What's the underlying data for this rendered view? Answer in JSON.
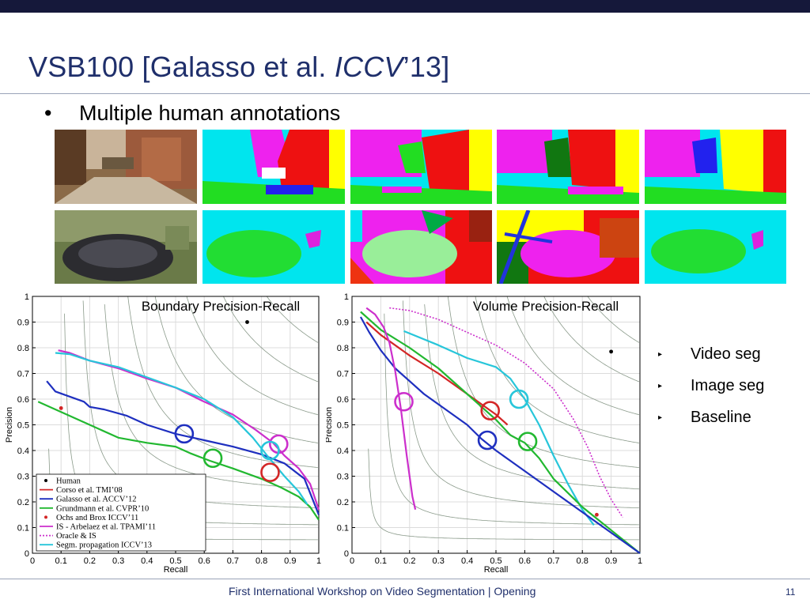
{
  "slide": {
    "title_main": "VSB100   [Galasso et al. ",
    "title_ital": "ICCV",
    "title_end": "’13]",
    "bullet_marker": "•",
    "bullet": "Multiple human annotations",
    "legend": [
      {
        "marker": "▸",
        "label": "Video seg"
      },
      {
        "marker": "▸",
        "label": "Image seg"
      },
      {
        "marker": "▸",
        "label": "Baseline"
      }
    ],
    "footer": "First International Workshop on Video Segmentation |  Opening",
    "page_number": "11"
  },
  "images": [
    {
      "name": "temple-photo",
      "kind": "photo"
    },
    {
      "name": "temple-annotation-1",
      "kind": "segmentation"
    },
    {
      "name": "temple-annotation-2",
      "kind": "segmentation"
    },
    {
      "name": "temple-annotation-3",
      "kind": "segmentation"
    },
    {
      "name": "temple-annotation-4",
      "kind": "segmentation"
    },
    {
      "name": "mushroom-photo",
      "kind": "photo"
    },
    {
      "name": "mushroom-annotation-1",
      "kind": "segmentation"
    },
    {
      "name": "mushroom-annotation-2",
      "kind": "segmentation"
    },
    {
      "name": "mushroom-annotation-3",
      "kind": "segmentation"
    },
    {
      "name": "mushroom-annotation-4",
      "kind": "segmentation"
    }
  ],
  "chart_data": [
    {
      "type": "line",
      "title": "Boundary Precision-Recall",
      "xlabel": "Recall",
      "ylabel": "Precision",
      "xlim": [
        0,
        1
      ],
      "ylim": [
        0,
        1
      ],
      "ticks": [
        "0",
        "0.1",
        "0.2",
        "0.3",
        "0.4",
        "0.5",
        "0.6",
        "0.7",
        "0.8",
        "0.9",
        "1"
      ],
      "grid": true,
      "iso_f_curves": true,
      "legend_position": "bottom-left",
      "legend_entries": [
        {
          "label": "Human",
          "color": "#000000",
          "style": "dot"
        },
        {
          "label": "Corso et al. TMI’08",
          "color": "#d32626",
          "style": "line"
        },
        {
          "label": "Galasso et al. ACCV’12",
          "color": "#1e2fbf",
          "style": "line"
        },
        {
          "label": "Grundmann et al. CVPR’10",
          "color": "#22b830",
          "style": "line"
        },
        {
          "label": "Ochs and Brox ICCV’11",
          "color": "#d32626",
          "style": "dot"
        },
        {
          "label": "IS - Arbelaez et al. TPAMI’11",
          "color": "#cc2fcc",
          "style": "line"
        },
        {
          "label": "Oracle & IS",
          "color": "#cc2fcc",
          "style": "dashed"
        },
        {
          "label": "Segm. propagation ICCV’13",
          "color": "#27c6da",
          "style": "line"
        }
      ],
      "series": [
        {
          "color": "#1e2fbf",
          "points": [
            [
              0.05,
              0.67
            ],
            [
              0.08,
              0.63
            ],
            [
              0.13,
              0.61
            ],
            [
              0.18,
              0.59
            ],
            [
              0.2,
              0.57
            ],
            [
              0.25,
              0.56
            ],
            [
              0.33,
              0.535
            ],
            [
              0.4,
              0.5
            ],
            [
              0.5,
              0.465
            ],
            [
              0.6,
              0.44
            ],
            [
              0.7,
              0.415
            ],
            [
              0.8,
              0.385
            ],
            [
              0.88,
              0.35
            ],
            [
              0.95,
              0.29
            ],
            [
              1.0,
              0.15
            ]
          ]
        },
        {
          "color": "#22b830",
          "points": [
            [
              0.02,
              0.59
            ],
            [
              0.1,
              0.55
            ],
            [
              0.2,
              0.5
            ],
            [
              0.3,
              0.45
            ],
            [
              0.4,
              0.43
            ],
            [
              0.5,
              0.415
            ],
            [
              0.55,
              0.39
            ],
            [
              0.62,
              0.36
            ],
            [
              0.7,
              0.33
            ],
            [
              0.8,
              0.29
            ],
            [
              0.87,
              0.255
            ],
            [
              0.93,
              0.22
            ],
            [
              0.97,
              0.18
            ],
            [
              1.0,
              0.13
            ]
          ]
        },
        {
          "color": "#cc2fcc",
          "points": [
            [
              0.09,
              0.79
            ],
            [
              0.13,
              0.78
            ],
            [
              0.2,
              0.75
            ],
            [
              0.3,
              0.72
            ],
            [
              0.4,
              0.68
            ],
            [
              0.5,
              0.645
            ],
            [
              0.6,
              0.59
            ],
            [
              0.7,
              0.54
            ],
            [
              0.78,
              0.48
            ],
            [
              0.84,
              0.43
            ],
            [
              0.88,
              0.38
            ],
            [
              0.93,
              0.33
            ],
            [
              0.97,
              0.27
            ],
            [
              1.0,
              0.17
            ]
          ]
        },
        {
          "color": "#27c6da",
          "points": [
            [
              0.08,
              0.78
            ],
            [
              0.13,
              0.775
            ],
            [
              0.2,
              0.75
            ],
            [
              0.3,
              0.725
            ],
            [
              0.4,
              0.685
            ],
            [
              0.5,
              0.645
            ],
            [
              0.6,
              0.6
            ],
            [
              0.7,
              0.53
            ],
            [
              0.77,
              0.45
            ],
            [
              0.82,
              0.38
            ],
            [
              0.88,
              0.3
            ],
            [
              0.93,
              0.24
            ],
            [
              0.96,
              0.19
            ]
          ]
        }
      ],
      "points": [
        {
          "color": "#000000",
          "x": 0.75,
          "y": 0.9
        },
        {
          "color": "#d32626",
          "x": 0.1,
          "y": 0.565
        }
      ],
      "circles": [
        {
          "color": "#1e2fbf",
          "x": 0.53,
          "y": 0.465
        },
        {
          "color": "#22b830",
          "x": 0.63,
          "y": 0.37
        },
        {
          "color": "#cc2fcc",
          "x": 0.86,
          "y": 0.425
        },
        {
          "color": "#27c6da",
          "x": 0.83,
          "y": 0.4
        },
        {
          "color": "#d32626",
          "x": 0.83,
          "y": 0.315
        }
      ]
    },
    {
      "type": "line",
      "title": "Volume Precision-Recall",
      "xlabel": "Recall",
      "ylabel": "Precision",
      "xlim": [
        0,
        1
      ],
      "ylim": [
        0,
        1
      ],
      "ticks": [
        "0",
        "0.1",
        "0.2",
        "0.3",
        "0.4",
        "0.5",
        "0.6",
        "0.7",
        "0.8",
        "0.9",
        "1"
      ],
      "grid": true,
      "iso_f_curves": true,
      "series": [
        {
          "color": "#cc2fcc",
          "style": "dotted",
          "points": [
            [
              0.13,
              0.955
            ],
            [
              0.2,
              0.945
            ],
            [
              0.3,
              0.91
            ],
            [
              0.4,
              0.86
            ],
            [
              0.5,
              0.81
            ],
            [
              0.6,
              0.74
            ],
            [
              0.7,
              0.64
            ],
            [
              0.77,
              0.52
            ],
            [
              0.82,
              0.41
            ],
            [
              0.86,
              0.3
            ],
            [
              0.9,
              0.21
            ],
            [
              0.94,
              0.14
            ]
          ]
        },
        {
          "color": "#27c6da",
          "points": [
            [
              0.18,
              0.865
            ],
            [
              0.3,
              0.81
            ],
            [
              0.4,
              0.76
            ],
            [
              0.5,
              0.725
            ],
            [
              0.55,
              0.68
            ],
            [
              0.6,
              0.6
            ],
            [
              0.65,
              0.5
            ],
            [
              0.7,
              0.38
            ],
            [
              0.75,
              0.27
            ],
            [
              0.8,
              0.17
            ],
            [
              0.84,
              0.11
            ]
          ]
        },
        {
          "color": "#d32626",
          "points": [
            [
              0.05,
              0.9
            ],
            [
              0.1,
              0.85
            ],
            [
              0.2,
              0.77
            ],
            [
              0.3,
              0.7
            ],
            [
              0.4,
              0.62
            ],
            [
              0.45,
              0.58
            ],
            [
              0.5,
              0.54
            ],
            [
              0.54,
              0.5
            ]
          ]
        },
        {
          "color": "#22b830",
          "points": [
            [
              0.03,
              0.94
            ],
            [
              0.1,
              0.87
            ],
            [
              0.2,
              0.8
            ],
            [
              0.3,
              0.72
            ],
            [
              0.4,
              0.62
            ],
            [
              0.5,
              0.52
            ],
            [
              0.55,
              0.46
            ],
            [
              0.6,
              0.43
            ],
            [
              0.65,
              0.37
            ],
            [
              0.7,
              0.29
            ],
            [
              0.8,
              0.18
            ],
            [
              0.9,
              0.09
            ],
            [
              1.0,
              0.0
            ]
          ]
        },
        {
          "color": "#1e2fbf",
          "points": [
            [
              0.03,
              0.92
            ],
            [
              0.06,
              0.86
            ],
            [
              0.1,
              0.79
            ],
            [
              0.15,
              0.72
            ],
            [
              0.2,
              0.67
            ],
            [
              0.25,
              0.62
            ],
            [
              0.3,
              0.58
            ],
            [
              0.4,
              0.5
            ],
            [
              0.45,
              0.445
            ],
            [
              0.5,
              0.4
            ],
            [
              0.55,
              0.36
            ],
            [
              0.6,
              0.32
            ],
            [
              0.7,
              0.24
            ],
            [
              0.8,
              0.16
            ],
            [
              0.9,
              0.08
            ],
            [
              1.0,
              0.0
            ]
          ]
        },
        {
          "color": "#cc2fcc",
          "points": [
            [
              0.05,
              0.955
            ],
            [
              0.08,
              0.93
            ],
            [
              0.11,
              0.88
            ],
            [
              0.13,
              0.82
            ],
            [
              0.15,
              0.71
            ],
            [
              0.17,
              0.56
            ],
            [
              0.19,
              0.38
            ],
            [
              0.21,
              0.22
            ],
            [
              0.22,
              0.17
            ]
          ]
        }
      ],
      "points": [
        {
          "color": "#000000",
          "x": 0.9,
          "y": 0.785
        },
        {
          "color": "#d32626",
          "x": 0.85,
          "y": 0.15
        }
      ],
      "circles": [
        {
          "color": "#cc2fcc",
          "x": 0.18,
          "y": 0.59
        },
        {
          "color": "#d32626",
          "x": 0.48,
          "y": 0.555
        },
        {
          "color": "#27c6da",
          "x": 0.58,
          "y": 0.6
        },
        {
          "color": "#1e2fbf",
          "x": 0.47,
          "y": 0.44
        },
        {
          "color": "#22b830",
          "x": 0.61,
          "y": 0.435
        }
      ]
    }
  ]
}
